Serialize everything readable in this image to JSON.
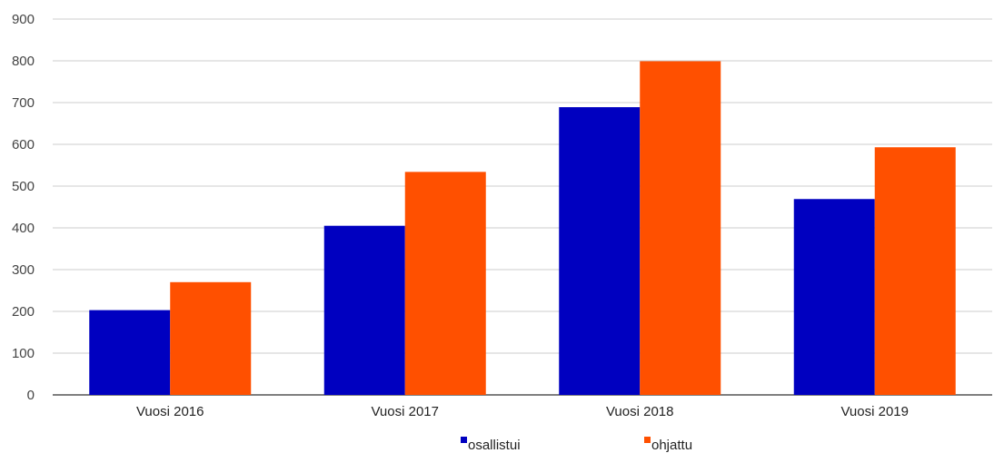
{
  "chart_data": {
    "type": "bar",
    "title": "",
    "xlabel": "",
    "ylabel": "",
    "categories": [
      "Vuosi 2016",
      "Vuosi 2017",
      "Vuosi 2018",
      "Vuosi 2019"
    ],
    "series": [
      {
        "name": "osallistui",
        "color": "#0000c0",
        "values": [
          203,
          405,
          689,
          469
        ]
      },
      {
        "name": "ohjattu",
        "color": "#ff5000",
        "values": [
          270,
          534,
          799,
          593
        ]
      }
    ],
    "ylim": [
      0,
      900
    ],
    "yticks": [
      0,
      100,
      200,
      300,
      400,
      500,
      600,
      700,
      800,
      900
    ],
    "grid": true,
    "legend_position": "bottom-center"
  }
}
